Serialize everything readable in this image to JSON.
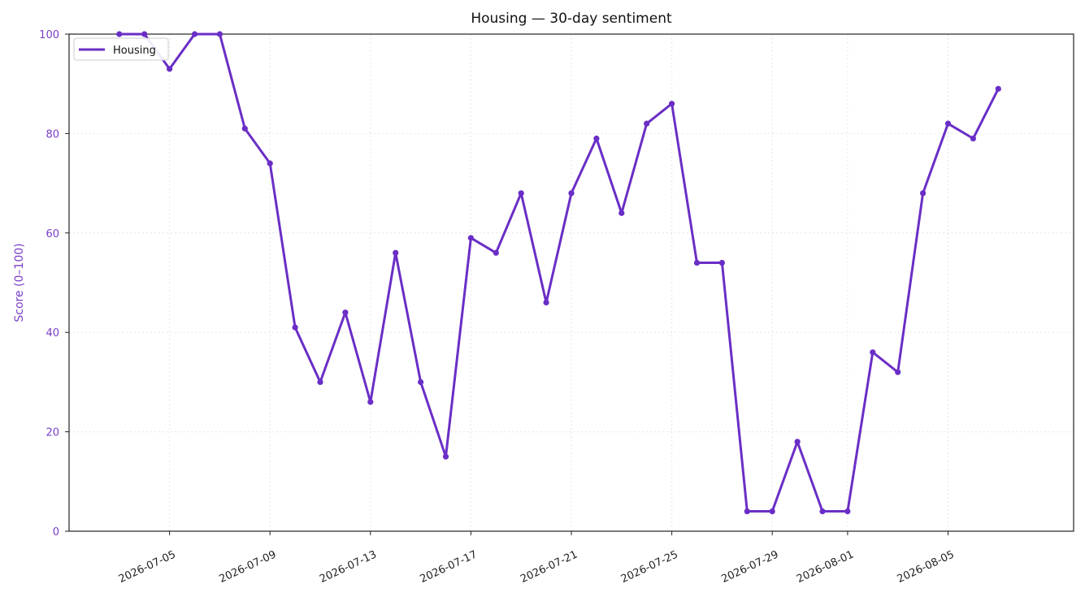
{
  "chart_data": {
    "type": "line",
    "title": "Housing — 30-day sentiment",
    "xlabel": "",
    "ylabel": "Score (0–100)",
    "ylim": [
      0,
      100
    ],
    "y_ticks": [
      0,
      20,
      40,
      60,
      80,
      100
    ],
    "x_range": [
      "2026-07-01",
      "2026-08-10"
    ],
    "x_ticks": [
      "2026-07-05",
      "2026-07-09",
      "2026-07-13",
      "2026-07-17",
      "2026-07-21",
      "2026-07-25",
      "2026-07-29",
      "2026-08-01",
      "2026-08-05"
    ],
    "grid": true,
    "legend_position": "top-left",
    "colors": {
      "series": "#6a2ec6",
      "y_axis_text": "#7a3ec8",
      "grid": "#e6e6e6",
      "axis": "#222222"
    },
    "series": [
      {
        "name": "Housing",
        "x": [
          "2026-07-03",
          "2026-07-04",
          "2026-07-05",
          "2026-07-06",
          "2026-07-07",
          "2026-07-08",
          "2026-07-09",
          "2026-07-10",
          "2026-07-11",
          "2026-07-12",
          "2026-07-13",
          "2026-07-14",
          "2026-07-15",
          "2026-07-16",
          "2026-07-17",
          "2026-07-18",
          "2026-07-19",
          "2026-07-20",
          "2026-07-21",
          "2026-07-22",
          "2026-07-23",
          "2026-07-24",
          "2026-07-25",
          "2026-07-26",
          "2026-07-27",
          "2026-07-28",
          "2026-07-29",
          "2026-07-30",
          "2026-07-31",
          "2026-08-01",
          "2026-08-02",
          "2026-08-03",
          "2026-08-04",
          "2026-08-05",
          "2026-08-06",
          "2026-08-07"
        ],
        "values": [
          100,
          100,
          93,
          100,
          100,
          81,
          74,
          41,
          30,
          44,
          26,
          56,
          30,
          15,
          59,
          56,
          68,
          46,
          68,
          79,
          64,
          82,
          86,
          54,
          54,
          4,
          4,
          18,
          4,
          4,
          36,
          32,
          68,
          82,
          79,
          89
        ]
      }
    ]
  }
}
